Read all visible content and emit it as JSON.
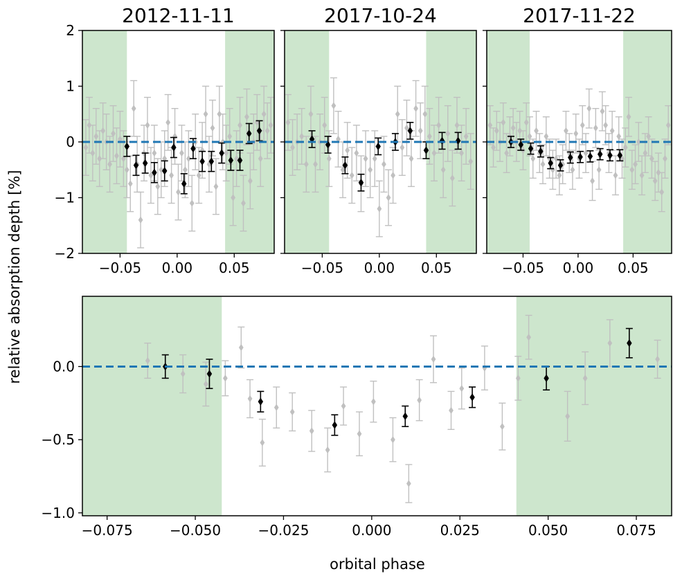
{
  "chart_data": [
    {
      "type": "scatter",
      "title": "2012-11-11",
      "xlim": [
        -0.083,
        0.085
      ],
      "ylim": [
        -2,
        2
      ],
      "xticks": [
        -0.05,
        0.0,
        0.05
      ],
      "xtick_labels": [
        "−0.05",
        "0.00",
        "0.05"
      ],
      "yticks": [
        -2,
        -1,
        0,
        1,
        2
      ],
      "ytick_labels": [
        "−2",
        "−1",
        "0",
        "1",
        "2"
      ],
      "shaded_x_ranges": [
        [
          -0.083,
          -0.044
        ],
        [
          0.042,
          0.085
        ]
      ],
      "reference_line_y": 0.0,
      "series": [
        {
          "role": "unbinned",
          "x": [
            -0.08,
            -0.077,
            -0.074,
            -0.071,
            -0.068,
            -0.065,
            -0.062,
            -0.059,
            -0.056,
            -0.053,
            -0.05,
            -0.047,
            -0.044,
            -0.041,
            -0.038,
            -0.035,
            -0.032,
            -0.029,
            -0.026,
            -0.023,
            -0.02,
            -0.017,
            -0.014,
            -0.011,
            -0.008,
            -0.005,
            -0.002,
            0.001,
            0.004,
            0.007,
            0.01,
            0.013,
            0.016,
            0.019,
            0.022,
            0.025,
            0.028,
            0.031,
            0.034,
            0.037,
            0.04,
            0.043,
            0.046,
            0.049,
            0.052,
            0.055,
            0.058,
            0.061,
            0.064,
            0.067,
            0.07,
            0.073,
            0.076,
            0.079,
            0.082
          ],
          "y": [
            -0.1,
            0.3,
            -0.2,
            0.1,
            -0.3,
            0.2,
            0.0,
            -0.4,
            0.15,
            -0.25,
            0.05,
            -0.3,
            -0.5,
            -0.75,
            0.6,
            -0.4,
            -1.4,
            -0.2,
            0.3,
            -0.6,
            -0.2,
            -0.8,
            -0.5,
            -0.3,
            0.35,
            -0.6,
            0.1,
            -0.9,
            -0.2,
            -0.5,
            -0.3,
            -1.1,
            0.0,
            -0.6,
            -0.15,
            0.5,
            -0.4,
            0.25,
            -0.8,
            0.5,
            0.0,
            -0.2,
            0.1,
            -1.0,
            -0.3,
            0.3,
            -1.1,
            0.45,
            -0.7,
            0.0,
            0.35,
            -0.3,
            0.5,
            0.2,
            0.3
          ],
          "yerr": 0.5,
          "color": "#c0c0c0"
        },
        {
          "role": "binned",
          "x": [
            -0.044,
            -0.036,
            -0.028,
            -0.02,
            -0.011,
            -0.003,
            0.006,
            0.014,
            0.022,
            0.03,
            0.039,
            0.047,
            0.055,
            0.063,
            0.072
          ],
          "y": [
            -0.08,
            -0.42,
            -0.38,
            -0.55,
            -0.52,
            -0.1,
            -0.75,
            -0.12,
            -0.35,
            -0.35,
            -0.2,
            -0.33,
            -0.33,
            0.15,
            0.2
          ],
          "yerr": 0.18,
          "color": "#000000"
        }
      ]
    },
    {
      "type": "scatter",
      "title": "2017-10-24",
      "xlim": [
        -0.083,
        0.085
      ],
      "ylim": [
        -2,
        2
      ],
      "xticks": [
        -0.05,
        0.0,
        0.05
      ],
      "xtick_labels": [
        "−0.05",
        "0.00",
        "0.05"
      ],
      "shaded_x_ranges": [
        [
          -0.083,
          -0.044
        ],
        [
          0.041,
          0.085
        ]
      ],
      "reference_line_y": 0.0,
      "series": [
        {
          "role": "unbinned",
          "x": [
            -0.08,
            -0.076,
            -0.072,
            -0.068,
            -0.064,
            -0.06,
            -0.056,
            -0.052,
            -0.048,
            -0.044,
            -0.04,
            -0.036,
            -0.032,
            -0.028,
            -0.024,
            -0.02,
            -0.016,
            -0.012,
            -0.008,
            -0.004,
            0.0,
            0.004,
            0.008,
            0.012,
            0.016,
            0.02,
            0.024,
            0.028,
            0.032,
            0.036,
            0.04,
            0.044,
            0.048,
            0.052,
            0.056,
            0.06,
            0.064,
            0.068,
            0.072,
            0.076,
            0.08
          ],
          "y": [
            0.35,
            -0.1,
            0.0,
            0.1,
            -0.4,
            0.5,
            -0.4,
            0.0,
            0.3,
            -0.3,
            0.65,
            0.05,
            -0.5,
            -0.15,
            -0.6,
            -0.2,
            -0.75,
            -0.3,
            -0.5,
            -0.3,
            -1.2,
            -0.4,
            -1.0,
            -0.6,
            0.5,
            -0.1,
            0.25,
            -0.3,
            0.6,
            0.2,
            0.5,
            0.1,
            -0.2,
            0.3,
            -0.5,
            0.15,
            -0.65,
            0.3,
            -0.2,
            0.1,
            -0.35
          ],
          "yerr": 0.5,
          "color": "#c0c0c0"
        },
        {
          "role": "binned",
          "x": [
            -0.059,
            -0.045,
            -0.03,
            -0.016,
            -0.001,
            0.014,
            0.027,
            0.041,
            0.055,
            0.069
          ],
          "y": [
            0.05,
            -0.05,
            -0.42,
            -0.73,
            -0.08,
            0.0,
            0.2,
            -0.15,
            0.02,
            0.02
          ],
          "yerr": 0.15,
          "color": "#000000"
        }
      ]
    },
    {
      "type": "scatter",
      "title": "2017-11-22",
      "xlim": [
        -0.083,
        0.085
      ],
      "ylim": [
        -2,
        2
      ],
      "xticks": [
        -0.05,
        0.0,
        0.05
      ],
      "xtick_labels": [
        "−0.05",
        "0.00",
        "0.05"
      ],
      "shaded_x_ranges": [
        [
          -0.083,
          -0.044
        ],
        [
          0.041,
          0.085
        ]
      ],
      "reference_line_y": 0.0,
      "series": [
        {
          "role": "unbinned",
          "x": [
            -0.08,
            -0.077,
            -0.074,
            -0.071,
            -0.068,
            -0.065,
            -0.062,
            -0.059,
            -0.056,
            -0.053,
            -0.05,
            -0.047,
            -0.044,
            -0.041,
            -0.038,
            -0.035,
            -0.032,
            -0.029,
            -0.026,
            -0.023,
            -0.02,
            -0.017,
            -0.014,
            -0.011,
            -0.008,
            -0.005,
            -0.002,
            0.001,
            0.004,
            0.007,
            0.01,
            0.013,
            0.016,
            0.019,
            0.022,
            0.025,
            0.028,
            0.031,
            0.034,
            0.037,
            0.04,
            0.043,
            0.046,
            0.049,
            0.052,
            0.055,
            0.058,
            0.061,
            0.064,
            0.067,
            0.07,
            0.073,
            0.076,
            0.079,
            0.082
          ],
          "y": [
            0.3,
            -0.1,
            0.2,
            0.0,
            0.35,
            -0.2,
            0.1,
            0.25,
            0.0,
            0.2,
            -0.15,
            0.35,
            0.1,
            -0.3,
            0.2,
            -0.2,
            -0.4,
            0.1,
            -0.3,
            -0.5,
            -0.3,
            -0.6,
            -0.4,
            0.2,
            -0.2,
            -0.5,
            0.15,
            -0.3,
            0.3,
            -0.2,
            0.6,
            -0.7,
            0.25,
            -0.5,
            0.55,
            0.3,
            -0.2,
            0.2,
            -0.6,
            0.1,
            -0.3,
            -0.1,
            0.45,
            -0.5,
            -0.4,
            0.0,
            -0.6,
            -0.2,
            0.1,
            -0.3,
            -0.7,
            -0.55,
            -0.9,
            -0.3,
            0.3
          ],
          "yerr": 0.35,
          "color": "#c0c0c0"
        },
        {
          "role": "binned",
          "x": [
            -0.061,
            -0.052,
            -0.043,
            -0.034,
            -0.025,
            -0.016,
            -0.007,
            0.002,
            0.011,
            0.02,
            0.029,
            0.038
          ],
          "y": [
            0.0,
            -0.05,
            -0.12,
            -0.17,
            -0.38,
            -0.42,
            -0.28,
            -0.27,
            -0.26,
            -0.22,
            -0.24,
            -0.24
          ],
          "yerr": 0.1,
          "color": "#000000"
        }
      ]
    },
    {
      "type": "scatter",
      "title": "",
      "xlabel": "orbital phase",
      "ylabel": "relative absorption depth [%]",
      "xlim": [
        -0.082,
        0.085
      ],
      "ylim": [
        -1.02,
        0.48
      ],
      "xticks": [
        -0.075,
        -0.05,
        -0.025,
        0.0,
        0.025,
        0.05,
        0.075
      ],
      "xtick_labels": [
        "−0.075",
        "−0.050",
        "−0.025",
        "0.000",
        "0.025",
        "0.050",
        "0.075"
      ],
      "yticks": [
        -1.0,
        -0.5,
        0.0
      ],
      "ytick_labels": [
        "−1.0",
        "−0.5",
        "0.0"
      ],
      "shaded_x_ranges": [
        [
          -0.082,
          -0.0425
        ],
        [
          0.041,
          0.085
        ]
      ],
      "reference_line_y": 0.0,
      "series": [
        {
          "role": "unbinned",
          "x": [
            -0.0635,
            -0.0535,
            -0.047,
            -0.0415,
            -0.037,
            -0.0345,
            -0.031,
            -0.027,
            -0.0225,
            -0.017,
            -0.0125,
            -0.008,
            -0.0035,
            0.0005,
            0.006,
            0.0105,
            0.0135,
            0.0175,
            0.0225,
            0.0255,
            0.032,
            0.037,
            0.0415,
            0.0445,
            0.0555,
            0.0605,
            0.0675,
            0.081
          ],
          "y": [
            0.04,
            -0.05,
            -0.12,
            -0.08,
            0.13,
            -0.22,
            -0.52,
            -0.28,
            -0.31,
            -0.44,
            -0.57,
            -0.27,
            -0.46,
            -0.24,
            -0.5,
            -0.8,
            -0.23,
            0.05,
            -0.3,
            -0.15,
            -0.01,
            -0.41,
            -0.08,
            0.2,
            -0.34,
            -0.08,
            0.16,
            0.05
          ],
          "yerr": [
            0.12,
            0.13,
            0.15,
            0.12,
            0.14,
            0.13,
            0.16,
            0.14,
            0.13,
            0.14,
            0.15,
            0.13,
            0.15,
            0.14,
            0.15,
            0.13,
            0.14,
            0.16,
            0.13,
            0.14,
            0.15,
            0.16,
            0.15,
            0.15,
            0.17,
            0.18,
            0.16,
            0.13
          ],
          "color": "#c0c0c0"
        },
        {
          "role": "binned",
          "x": [
            -0.0585,
            -0.046,
            -0.0315,
            -0.0105,
            0.0095,
            0.0285,
            0.0495,
            0.073
          ],
          "y": [
            0.0,
            -0.05,
            -0.24,
            -0.4,
            -0.34,
            -0.21,
            -0.08,
            0.16
          ],
          "yerr": [
            0.08,
            0.1,
            0.07,
            0.07,
            0.07,
            0.07,
            0.08,
            0.1
          ],
          "color": "#000000"
        }
      ]
    }
  ],
  "colors": {
    "shade": "#cde6cd",
    "reference_line": "#1f77b4",
    "unbinned": "#c0c0c0",
    "binned": "#000000"
  }
}
